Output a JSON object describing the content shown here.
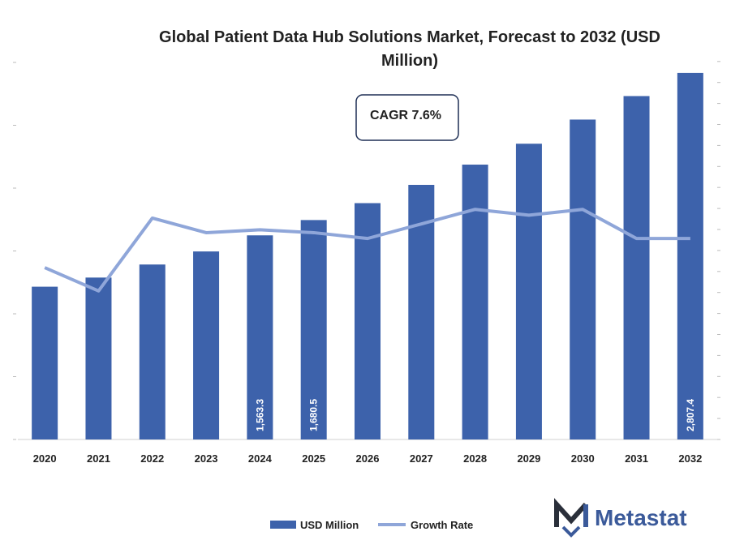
{
  "chart_data": {
    "type": "bar",
    "title": "Global Patient Data Hub Solutions Market, Forecast to 2032 (USD Million)",
    "categories": [
      "2020",
      "2021",
      "2022",
      "2023",
      "2024",
      "2025",
      "2026",
      "2027",
      "2028",
      "2029",
      "2030",
      "2031",
      "2032"
    ],
    "series": [
      {
        "name": "USD Million",
        "type": "bar",
        "values": [
          1170,
          1240,
          1340,
          1440,
          1563.3,
          1680.5,
          1810,
          1950,
          2105,
          2265,
          2450,
          2630,
          2807.4
        ]
      },
      {
        "name": "Growth Rate",
        "type": "line",
        "values": [
          5.9,
          5.1,
          7.6,
          7.1,
          7.2,
          7.1,
          6.9,
          7.4,
          7.9,
          7.7,
          7.9,
          6.9,
          6.9
        ]
      }
    ],
    "data_labels": {
      "2024": "1,563.3",
      "2025": "1,680.5",
      "2032": "2,807.4"
    },
    "ylim_bars": [
      0,
      2900
    ],
    "ylim_line": [
      0,
      13
    ],
    "annotation": "CAGR 7.6%",
    "legend_position": "bottom",
    "colors": {
      "bar": "#3d62ab",
      "line": "#8fa6d9"
    }
  },
  "legend": {
    "bar_label": "USD Million",
    "line_label": "Growth Rate"
  },
  "brand": {
    "name": "Metastat"
  }
}
